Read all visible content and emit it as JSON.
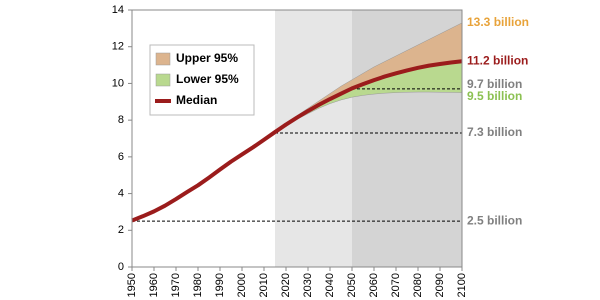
{
  "chart_data": {
    "type": "line",
    "x": [
      1950,
      1955,
      1960,
      1965,
      1970,
      1975,
      1980,
      1985,
      1990,
      1995,
      2000,
      2005,
      2010,
      2015,
      2020,
      2025,
      2030,
      2035,
      2040,
      2045,
      2050,
      2055,
      2060,
      2065,
      2070,
      2075,
      2080,
      2085,
      2090,
      2095,
      2100
    ],
    "series": [
      {
        "name": "Upper 95%",
        "color": "#dcb48e",
        "band": true,
        "values": [
          null,
          null,
          null,
          null,
          null,
          null,
          null,
          null,
          null,
          null,
          null,
          null,
          null,
          7.35,
          7.8,
          8.25,
          8.65,
          9.05,
          9.45,
          9.85,
          10.2,
          10.55,
          10.9,
          11.2,
          11.5,
          11.8,
          12.1,
          12.4,
          12.7,
          13.0,
          13.3
        ]
      },
      {
        "name": "Lower 95%",
        "color": "#b9d98f",
        "band": true,
        "values": [
          null,
          null,
          null,
          null,
          null,
          null,
          null,
          null,
          null,
          null,
          null,
          null,
          null,
          7.35,
          7.7,
          8.05,
          8.35,
          8.65,
          8.9,
          9.1,
          9.25,
          9.35,
          9.42,
          9.47,
          9.5,
          9.52,
          9.53,
          9.53,
          9.52,
          9.51,
          9.5
        ]
      },
      {
        "name": "Median",
        "color": "#9b1c1c",
        "values": [
          2.53,
          2.77,
          3.03,
          3.34,
          3.7,
          4.08,
          4.45,
          4.87,
          5.31,
          5.74,
          6.13,
          6.52,
          6.93,
          7.35,
          7.76,
          8.14,
          8.5,
          8.84,
          9.15,
          9.44,
          9.73,
          9.96,
          10.18,
          10.38,
          10.55,
          10.71,
          10.85,
          10.97,
          11.06,
          11.14,
          11.21
        ]
      }
    ],
    "xlim": [
      1950,
      2100
    ],
    "xticks": [
      1950,
      1960,
      1970,
      1980,
      1990,
      2000,
      2010,
      2020,
      2030,
      2040,
      2050,
      2060,
      2070,
      2080,
      2090,
      2100
    ],
    "ylim": [
      0,
      14
    ],
    "yticks": [
      0,
      2,
      4,
      6,
      8,
      10,
      12,
      14
    ],
    "shaded_periods": [
      {
        "from": 2015,
        "to": 2100,
        "color": "#e6e6e6"
      },
      {
        "from": 2050,
        "to": 2100,
        "color": "#d4d4d4"
      }
    ],
    "annotations": [
      {
        "label": "13.3 billion",
        "value": 13.3,
        "color": "#e8a33a"
      },
      {
        "label": "11.2 billion",
        "value": 11.2,
        "color": "#9b1c1c"
      },
      {
        "label": "9.7 billion",
        "value": 9.7,
        "color": "#808080",
        "line_from": 2050
      },
      {
        "label": "9.5 billion",
        "value": 9.5,
        "color": "#8cc152"
      },
      {
        "label": "7.3 billion",
        "value": 7.3,
        "color": "#808080",
        "line_from": 2015
      },
      {
        "label": "2.5 billion",
        "value": 2.5,
        "color": "#808080",
        "line_from": 1950
      }
    ],
    "legend": "upper-left"
  }
}
